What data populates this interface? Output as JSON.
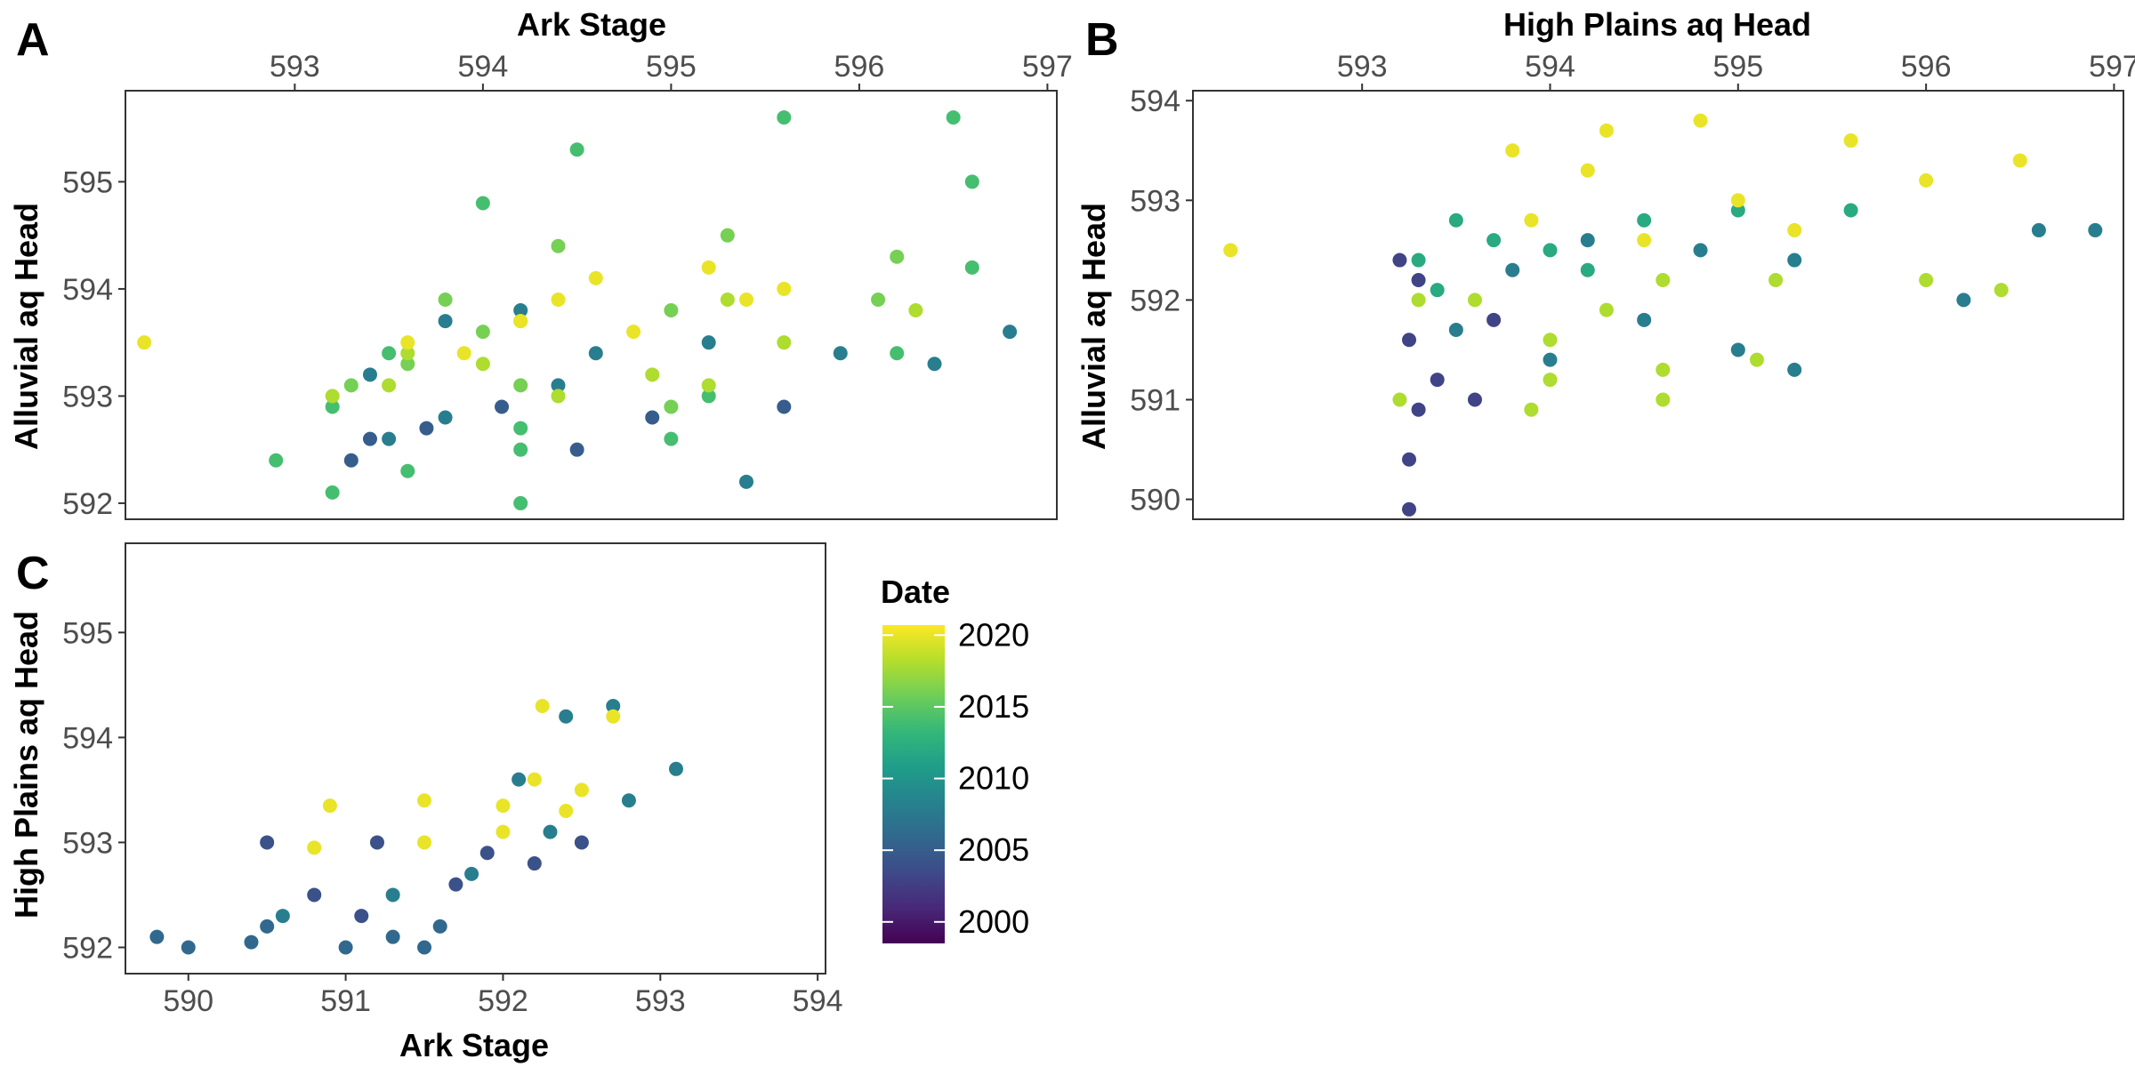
{
  "chart_data": [
    {
      "panel": "A",
      "type": "scatter",
      "title": "",
      "xlabel": "Ark Stage",
      "ylabel": "Alluvial aq Head",
      "xlabel_position": "top",
      "xlim": [
        592.1,
        597.05
      ],
      "ylim": [
        591.85,
        595.85
      ],
      "xticks": [
        593,
        594,
        595,
        596,
        597
      ],
      "yticks": [
        592,
        593,
        594,
        595
      ],
      "grid": false,
      "color_by": "Date",
      "series": [
        {
          "label_year": 2020,
          "points": [
            [
              592.2,
              593.5
            ],
            [
              594.6,
              594.1
            ],
            [
              595.2,
              594.2
            ],
            [
              595.6,
              594.0
            ],
            [
              594.4,
              593.9
            ],
            [
              593.6,
              593.5
            ],
            [
              594.2,
              593.7
            ],
            [
              595.4,
              593.9
            ],
            [
              594.8,
              593.6
            ],
            [
              593.9,
              593.4
            ]
          ]
        },
        {
          "label_year": 2018,
          "points": [
            [
              593.2,
              593.0
            ],
            [
              593.6,
              593.4
            ],
            [
              594.2,
              593.7
            ],
            [
              595.3,
              593.9
            ],
            [
              596.3,
              593.8
            ],
            [
              595.6,
              593.5
            ],
            [
              594.9,
              593.2
            ],
            [
              594.0,
              593.3
            ],
            [
              593.5,
              593.1
            ],
            [
              594.4,
              593.0
            ],
            [
              595.2,
              593.1
            ]
          ]
        },
        {
          "label_year": 2016,
          "points": [
            [
              593.3,
              593.1
            ],
            [
              593.8,
              593.9
            ],
            [
              594.4,
              594.4
            ],
            [
              595.3,
              594.5
            ],
            [
              596.2,
              594.3
            ],
            [
              596.1,
              593.9
            ],
            [
              595.0,
              593.8
            ],
            [
              594.0,
              593.6
            ],
            [
              593.6,
              593.3
            ],
            [
              594.2,
              593.1
            ],
            [
              595.0,
              592.9
            ]
          ]
        },
        {
          "label_year": 2014,
          "points": [
            [
              593.5,
              593.4
            ],
            [
              594.0,
              594.8
            ],
            [
              594.5,
              595.3
            ],
            [
              595.6,
              595.6
            ],
            [
              596.5,
              595.6
            ],
            [
              596.6,
              595.0
            ],
            [
              596.6,
              594.2
            ],
            [
              596.2,
              593.4
            ],
            [
              595.2,
              593.0
            ],
            [
              594.2,
              592.7
            ],
            [
              593.2,
              592.9
            ],
            [
              593.2,
              592.1
            ],
            [
              594.2,
              592.0
            ],
            [
              595.0,
              592.6
            ],
            [
              593.6,
              592.3
            ],
            [
              592.9,
              592.4
            ],
            [
              594.2,
              592.5
            ]
          ]
        },
        {
          "label_year": 2008,
          "points": [
            [
              593.4,
              593.2
            ],
            [
              593.8,
              593.7
            ],
            [
              594.2,
              593.8
            ],
            [
              594.6,
              593.4
            ],
            [
              595.2,
              593.5
            ],
            [
              595.9,
              593.4
            ],
            [
              596.4,
              593.3
            ],
            [
              596.8,
              593.6
            ],
            [
              594.4,
              593.1
            ],
            [
              593.8,
              592.8
            ],
            [
              595.4,
              592.2
            ],
            [
              593.5,
              592.6
            ]
          ]
        },
        {
          "label_year": 2005,
          "points": [
            [
              593.4,
              592.6
            ],
            [
              593.7,
              592.7
            ],
            [
              594.1,
              592.9
            ],
            [
              594.9,
              592.8
            ],
            [
              595.6,
              592.9
            ],
            [
              593.3,
              592.4
            ],
            [
              594.5,
              592.5
            ]
          ]
        }
      ]
    },
    {
      "panel": "B",
      "type": "scatter",
      "title": "",
      "xlabel": "High Plains aq Head",
      "ylabel": "Alluvial aq Head",
      "xlabel_position": "top",
      "xlim": [
        592.1,
        597.05
      ],
      "ylim": [
        589.8,
        594.1
      ],
      "xticks": [
        593,
        594,
        595,
        596,
        597
      ],
      "yticks": [
        590,
        591,
        592,
        593,
        594
      ],
      "grid": false,
      "color_by": "Date",
      "series": [
        {
          "label_year": 2020,
          "points": [
            [
              592.3,
              592.5
            ],
            [
              593.8,
              593.5
            ],
            [
              594.3,
              593.7
            ],
            [
              594.8,
              593.8
            ],
            [
              595.6,
              593.6
            ],
            [
              596.5,
              593.4
            ],
            [
              596.0,
              593.2
            ],
            [
              595.0,
              593.0
            ],
            [
              594.2,
              593.3
            ],
            [
              593.9,
              592.8
            ],
            [
              594.5,
              592.6
            ],
            [
              595.3,
              592.7
            ]
          ]
        },
        {
          "label_year": 2018,
          "points": [
            [
              593.2,
              591.0
            ],
            [
              593.3,
              592.0
            ],
            [
              593.6,
              592.0
            ],
            [
              594.0,
              591.6
            ],
            [
              594.3,
              591.9
            ],
            [
              594.6,
              592.2
            ],
            [
              595.2,
              592.2
            ],
            [
              596.0,
              592.2
            ],
            [
              596.4,
              592.1
            ],
            [
              594.0,
              591.2
            ],
            [
              594.6,
              591.3
            ],
            [
              595.1,
              591.4
            ],
            [
              593.9,
              590.9
            ],
            [
              594.6,
              591.0
            ]
          ]
        },
        {
          "label_year": 2012,
          "points": [
            [
              593.3,
              592.4
            ],
            [
              593.5,
              592.8
            ],
            [
              593.7,
              592.6
            ],
            [
              594.0,
              592.5
            ],
            [
              594.5,
              592.8
            ],
            [
              595.0,
              592.9
            ],
            [
              595.6,
              592.9
            ],
            [
              593.4,
              592.1
            ],
            [
              594.2,
              592.3
            ]
          ]
        },
        {
          "label_year": 2008,
          "points": [
            [
              593.8,
              592.3
            ],
            [
              594.2,
              592.6
            ],
            [
              594.8,
              592.5
            ],
            [
              595.3,
              592.4
            ],
            [
              596.2,
              592.0
            ],
            [
              596.6,
              592.7
            ],
            [
              596.9,
              592.7
            ],
            [
              594.5,
              591.8
            ],
            [
              595.0,
              591.5
            ],
            [
              595.3,
              591.3
            ],
            [
              593.5,
              591.7
            ],
            [
              594.0,
              591.4
            ]
          ]
        },
        {
          "label_year": 2003,
          "points": [
            [
              593.25,
              589.9
            ],
            [
              593.25,
              590.4
            ],
            [
              593.3,
              590.9
            ],
            [
              593.4,
              591.2
            ],
            [
              593.6,
              591.0
            ],
            [
              593.25,
              591.6
            ],
            [
              593.3,
              592.2
            ],
            [
              593.7,
              591.8
            ],
            [
              593.2,
              592.4
            ]
          ]
        }
      ]
    },
    {
      "panel": "C",
      "type": "scatter",
      "title": "",
      "xlabel": "Ark Stage",
      "ylabel": "High Plains aq Head",
      "xlabel_position": "bottom",
      "xlim": [
        589.6,
        594.05
      ],
      "ylim": [
        591.75,
        595.85
      ],
      "xticks": [
        590,
        591,
        592,
        593,
        594
      ],
      "yticks": [
        592,
        593,
        594,
        595
      ],
      "grid": false,
      "color_by": "Date",
      "series": [
        {
          "label_year": 2020,
          "points": [
            [
              590.9,
              593.35
            ],
            [
              591.5,
              593.4
            ],
            [
              592.0,
              593.35
            ],
            [
              590.8,
              592.95
            ],
            [
              591.5,
              593.0
            ],
            [
              592.0,
              593.1
            ],
            [
              592.2,
              593.6
            ],
            [
              592.25,
              594.3
            ],
            [
              592.5,
              593.5
            ],
            [
              592.7,
              594.2
            ],
            [
              592.4,
              593.3
            ]
          ]
        },
        {
          "label_year": 2008,
          "points": [
            [
              592.1,
              593.6
            ],
            [
              592.4,
              594.2
            ],
            [
              592.7,
              594.3
            ],
            [
              593.1,
              593.7
            ],
            [
              592.8,
              593.4
            ],
            [
              592.3,
              593.1
            ],
            [
              591.8,
              592.7
            ],
            [
              591.3,
              592.5
            ],
            [
              590.6,
              592.3
            ]
          ]
        },
        {
          "label_year": 2004,
          "points": [
            [
              590.5,
              593.0
            ],
            [
              591.2,
              593.0
            ],
            [
              591.9,
              592.9
            ],
            [
              592.5,
              593.0
            ],
            [
              590.8,
              592.5
            ],
            [
              591.7,
              592.6
            ],
            [
              591.1,
              592.3
            ],
            [
              592.2,
              592.8
            ]
          ]
        },
        {
          "label_year": 2006,
          "points": [
            [
              589.8,
              592.1
            ],
            [
              590.4,
              592.05
            ],
            [
              591.0,
              592.0
            ],
            [
              591.6,
              592.2
            ],
            [
              590.5,
              592.2
            ],
            [
              591.3,
              592.1
            ],
            [
              590.0,
              592.0
            ],
            [
              591.5,
              592.0
            ]
          ]
        }
      ]
    }
  ],
  "panels": {
    "A": {
      "letter": "A"
    },
    "B": {
      "letter": "B"
    },
    "C": {
      "letter": "C"
    }
  },
  "legend": {
    "title": "Date",
    "labels": [
      "2020",
      "2015",
      "2010",
      "2005",
      "2000"
    ],
    "values": [
      2020,
      2015,
      2010,
      2005,
      2000
    ],
    "range": [
      1998.5,
      2020.7
    ],
    "colors": [
      "#440154",
      "#482878",
      "#3e4a89",
      "#31688e",
      "#26828e",
      "#1f9e89",
      "#35b779",
      "#6ece58",
      "#b5de2b",
      "#fde725"
    ]
  }
}
